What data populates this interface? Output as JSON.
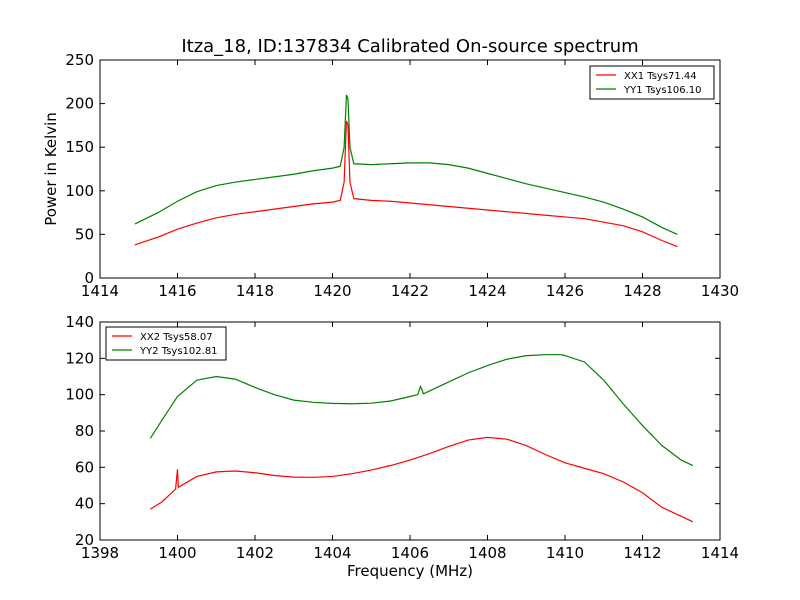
{
  "title": "Itza_18, ID:137834 Calibrated On-source spectrum",
  "colors": {
    "red": "#ff0000",
    "green": "#008000"
  },
  "chart_data": [
    {
      "type": "line",
      "title": "Itza_18, ID:137834 Calibrated On-source spectrum",
      "xlabel": "",
      "ylabel": "Power in Kelvin",
      "xlim": [
        1414,
        1430
      ],
      "ylim": [
        0,
        250
      ],
      "xticks": [
        1414,
        1416,
        1418,
        1420,
        1422,
        1424,
        1426,
        1428,
        1430
      ],
      "yticks": [
        0,
        50,
        100,
        150,
        200,
        250
      ],
      "grid": false,
      "legend": "top-right",
      "series": [
        {
          "name": "XX1 Tsys71.44",
          "color": "#ff0000",
          "points": [
            [
              1414.9,
              38
            ],
            [
              1415.5,
              47
            ],
            [
              1416,
              56
            ],
            [
              1416.5,
              63
            ],
            [
              1417,
              69
            ],
            [
              1417.5,
              73
            ],
            [
              1418,
              76
            ],
            [
              1418.5,
              79
            ],
            [
              1419,
              82
            ],
            [
              1419.5,
              85
            ],
            [
              1420,
              87
            ],
            [
              1420.2,
              89
            ],
            [
              1420.3,
              110
            ],
            [
              1420.36,
              180
            ],
            [
              1420.4,
              175
            ],
            [
              1420.45,
              110
            ],
            [
              1420.55,
              91
            ],
            [
              1421,
              89
            ],
            [
              1421.5,
              88
            ],
            [
              1422,
              86
            ],
            [
              1422.5,
              84
            ],
            [
              1423,
              82
            ],
            [
              1423.5,
              80
            ],
            [
              1424,
              78
            ],
            [
              1424.5,
              76
            ],
            [
              1425,
              74
            ],
            [
              1425.5,
              72
            ],
            [
              1426,
              70
            ],
            [
              1426.5,
              68
            ],
            [
              1427,
              64
            ],
            [
              1427.5,
              60
            ],
            [
              1428,
              53
            ],
            [
              1428.5,
              43
            ],
            [
              1428.9,
              36
            ]
          ]
        },
        {
          "name": "YY1 Tsys106.10",
          "color": "#008000",
          "points": [
            [
              1414.9,
              62
            ],
            [
              1415.5,
              75
            ],
            [
              1416,
              88
            ],
            [
              1416.5,
              99
            ],
            [
              1417,
              106
            ],
            [
              1417.5,
              110
            ],
            [
              1418,
              113
            ],
            [
              1418.5,
              116
            ],
            [
              1419,
              119
            ],
            [
              1419.5,
              123
            ],
            [
              1420,
              126
            ],
            [
              1420.2,
              128
            ],
            [
              1420.3,
              150
            ],
            [
              1420.36,
              210
            ],
            [
              1420.4,
              205
            ],
            [
              1420.45,
              150
            ],
            [
              1420.55,
              131
            ],
            [
              1421,
              130
            ],
            [
              1421.5,
              131
            ],
            [
              1422,
              132
            ],
            [
              1422.5,
              132
            ],
            [
              1423,
              130
            ],
            [
              1423.5,
              126
            ],
            [
              1424,
              120
            ],
            [
              1424.5,
              114
            ],
            [
              1425,
              108
            ],
            [
              1425.5,
              103
            ],
            [
              1426,
              98
            ],
            [
              1426.5,
              93
            ],
            [
              1427,
              87
            ],
            [
              1427.5,
              79
            ],
            [
              1428,
              70
            ],
            [
              1428.5,
              58
            ],
            [
              1428.9,
              50
            ]
          ]
        }
      ]
    },
    {
      "type": "line",
      "title": "",
      "xlabel": "Frequency (MHz)",
      "ylabel": "",
      "xlim": [
        1398,
        1414
      ],
      "ylim": [
        20,
        140
      ],
      "xticks": [
        1398,
        1400,
        1402,
        1404,
        1406,
        1408,
        1410,
        1412,
        1414
      ],
      "yticks": [
        20,
        40,
        60,
        80,
        100,
        120,
        140
      ],
      "grid": false,
      "legend": "top-left",
      "series": [
        {
          "name": "XX2 Tsys58.07",
          "color": "#ff0000",
          "points": [
            [
              1399.3,
              37
            ],
            [
              1399.6,
              41
            ],
            [
              1399.95,
              48
            ],
            [
              1400,
              59
            ],
            [
              1400.02,
              49
            ],
            [
              1400.5,
              55
            ],
            [
              1401,
              57.5
            ],
            [
              1401.5,
              58
            ],
            [
              1402,
              57
            ],
            [
              1402.5,
              55.5
            ],
            [
              1403,
              54.6
            ],
            [
              1403.5,
              54.5
            ],
            [
              1404,
              55
            ],
            [
              1404.5,
              56.5
            ],
            [
              1405,
              58.5
            ],
            [
              1405.5,
              61
            ],
            [
              1406,
              64
            ],
            [
              1406.5,
              67.5
            ],
            [
              1407,
              71.5
            ],
            [
              1407.5,
              75
            ],
            [
              1408,
              76.5
            ],
            [
              1408.5,
              75.5
            ],
            [
              1409,
              72
            ],
            [
              1409.5,
              67
            ],
            [
              1410,
              62.5
            ],
            [
              1410.5,
              59.5
            ],
            [
              1411,
              56.5
            ],
            [
              1411.5,
              52
            ],
            [
              1412,
              46
            ],
            [
              1412.5,
              38
            ],
            [
              1413.3,
              30
            ]
          ]
        },
        {
          "name": "YY2 Tsys102.81",
          "color": "#008000",
          "points": [
            [
              1399.3,
              76
            ],
            [
              1399.6,
              86
            ],
            [
              1400,
              99
            ],
            [
              1400.5,
              108
            ],
            [
              1401,
              110
            ],
            [
              1401.5,
              108.5
            ],
            [
              1402,
              104
            ],
            [
              1402.5,
              100
            ],
            [
              1403,
              97
            ],
            [
              1403.5,
              95.8
            ],
            [
              1404,
              95.2
            ],
            [
              1404.5,
              95
            ],
            [
              1405,
              95.3
            ],
            [
              1405.5,
              96.5
            ],
            [
              1406,
              99
            ],
            [
              1406.2,
              100
            ],
            [
              1406.27,
              104.5
            ],
            [
              1406.35,
              100.5
            ],
            [
              1406.6,
              103
            ],
            [
              1407,
              107
            ],
            [
              1407.5,
              112
            ],
            [
              1408,
              116
            ],
            [
              1408.5,
              119.5
            ],
            [
              1409,
              121.5
            ],
            [
              1409.5,
              122
            ],
            [
              1409.9,
              122
            ],
            [
              1410,
              121.5
            ],
            [
              1410.5,
              118
            ],
            [
              1411,
              108
            ],
            [
              1411.5,
              95
            ],
            [
              1412,
              83
            ],
            [
              1412.5,
              72
            ],
            [
              1413,
              64
            ],
            [
              1413.3,
              61
            ]
          ]
        }
      ]
    }
  ]
}
